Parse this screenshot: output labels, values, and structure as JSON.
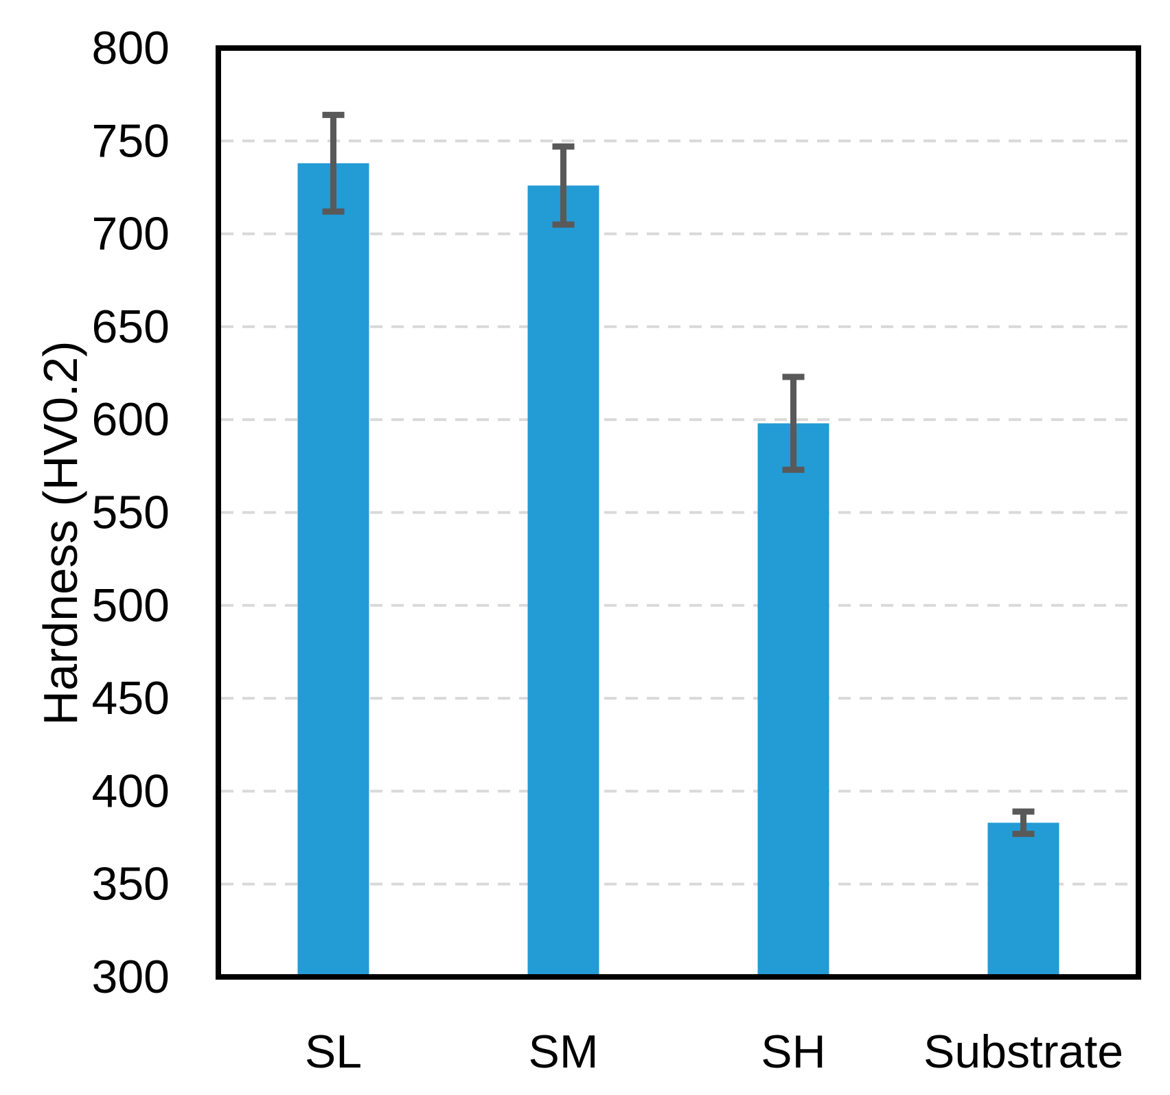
{
  "figure": {
    "background": "#ffffff"
  },
  "colors": {
    "bar": "#239BD5",
    "error_bar": "#595959",
    "gridline": "#D9D9D9",
    "frame": "#000000",
    "text": "#000000"
  },
  "chart_data": {
    "type": "bar",
    "title": "",
    "xlabel": "",
    "ylabel": "Hardness (HV0.2)",
    "categories": [
      "SL",
      "SM",
      "SH",
      "Substrate"
    ],
    "values": [
      738,
      726,
      598,
      383
    ],
    "error_upper": [
      26,
      21,
      25,
      6
    ],
    "error_lower": [
      26,
      21,
      25,
      6
    ],
    "ylim": [
      300,
      800
    ],
    "ytick_step": 50,
    "ytick_labels": [
      "300",
      "350",
      "400",
      "450",
      "500",
      "550",
      "600",
      "650",
      "700",
      "750",
      "800"
    ],
    "grid": "horizontal-dashed",
    "legend": "none",
    "series_name": "Hardness"
  }
}
